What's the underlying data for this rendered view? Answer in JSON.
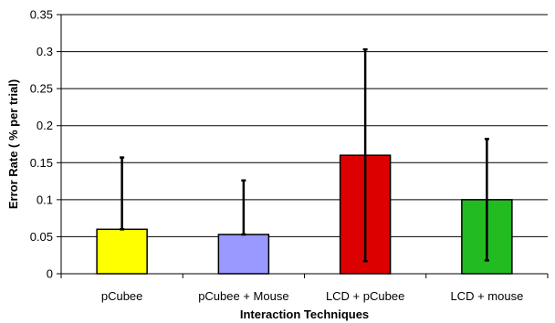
{
  "chart_data": {
    "type": "bar",
    "title": "",
    "xlabel": "Interaction Techniques",
    "ylabel": "Error Rate ( % per trial)",
    "ylim": [
      0,
      0.35
    ],
    "yticks": [
      "0",
      "0.05",
      "0.1",
      "0.15",
      "0.2",
      "0.25",
      "0.3",
      "0.35"
    ],
    "grid": true,
    "legend": "none",
    "categories": [
      "pCubee",
      "pCubee + Mouse",
      "LCD + pCubee",
      "LCD + mouse"
    ],
    "values": [
      0.06,
      0.053,
      0.16,
      0.1
    ],
    "error_low": [
      0.06,
      0.053,
      0.017,
      0.018
    ],
    "error_high": [
      0.157,
      0.126,
      0.303,
      0.182
    ],
    "colors": [
      "#ffff00",
      "#9999ff",
      "#dd0000",
      "#22bb22"
    ]
  }
}
